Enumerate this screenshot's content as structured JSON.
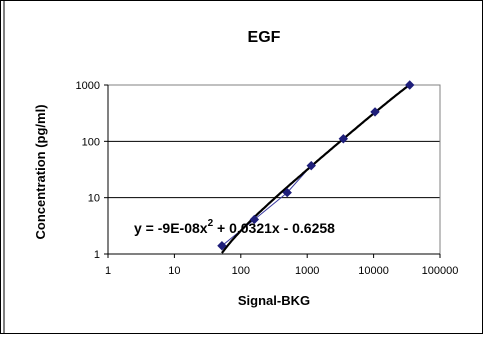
{
  "chart_data": {
    "type": "scatter",
    "title": "EGF",
    "xlabel": "Signal-BKG",
    "ylabel": "Concentration (pg/ml)",
    "x_scale": "log",
    "y_scale": "log",
    "xlim": [
      1,
      100000
    ],
    "ylim": [
      1,
      1000
    ],
    "x_ticks": [
      "1",
      "10",
      "100",
      "1000",
      "10000",
      "100000"
    ],
    "y_ticks": [
      "1",
      "10",
      "100",
      "1000"
    ],
    "grid": "horizontal major gridlines",
    "legend": "none",
    "series": [
      {
        "marker": "diamond",
        "color": "#1f1f7a",
        "x": [
          52,
          160,
          500,
          1150,
          3500,
          10500,
          35000
        ],
        "y": [
          1.4,
          4.1,
          12.3,
          37,
          111,
          333,
          1000
        ]
      }
    ],
    "trendline": {
      "type": "polynomial order 2",
      "equation_text": "y = -9E-08x",
      "equation_sup": "2",
      "equation_rest": " + 0.0321x - 0.6258",
      "coefficients": [
        -9e-08,
        0.0321,
        -0.6258
      ],
      "color": "#000000"
    }
  }
}
